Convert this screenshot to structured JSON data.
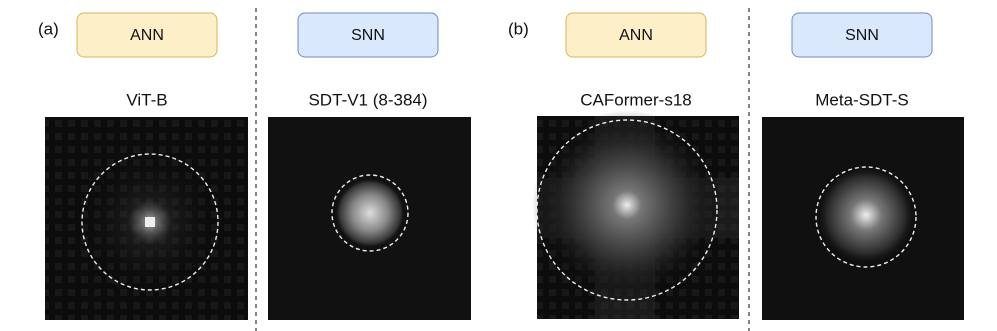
{
  "panels": [
    {
      "label": "(a)",
      "columns": [
        {
          "badge": "ANN",
          "model": "ViT-B"
        },
        {
          "badge": "SNN",
          "model": "SDT-V1 (8-384)"
        }
      ]
    },
    {
      "label": "(b)",
      "columns": [
        {
          "badge": "ANN",
          "model": "CAFormer-s18"
        },
        {
          "badge": "SNN",
          "model": "Meta-SDT-S"
        }
      ]
    }
  ]
}
